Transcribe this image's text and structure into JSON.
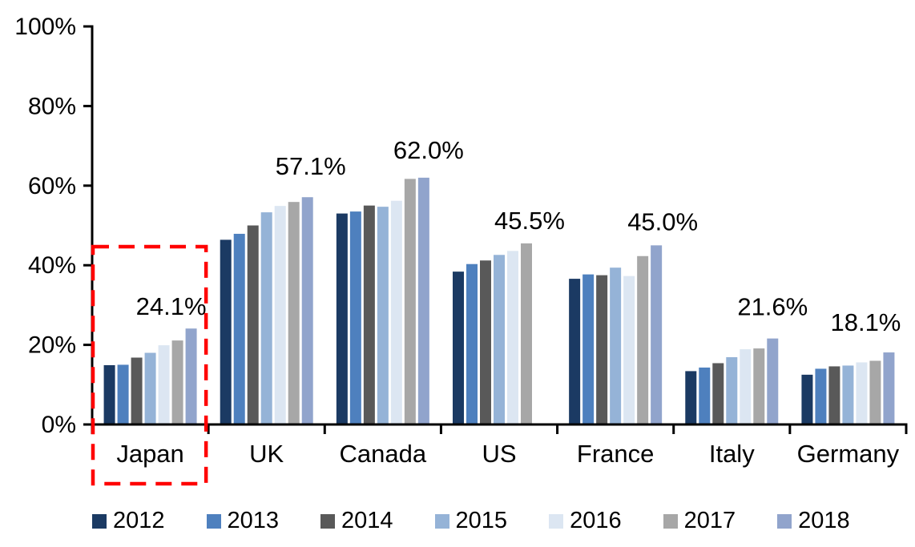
{
  "chart_data": {
    "type": "bar",
    "categories": [
      "Japan",
      "UK",
      "Canada",
      "US",
      "France",
      "Italy",
      "Germany"
    ],
    "series": [
      {
        "name": "2012",
        "color": "#1B3A63",
        "values": [
          14.9,
          46.4,
          53.0,
          38.4,
          36.6,
          13.4,
          12.5
        ]
      },
      {
        "name": "2013",
        "color": "#4E80BE",
        "values": [
          15.0,
          47.9,
          53.5,
          40.3,
          37.7,
          14.3,
          14.0
        ]
      },
      {
        "name": "2014",
        "color": "#595959",
        "values": [
          16.8,
          50.0,
          55.0,
          41.2,
          37.5,
          15.4,
          14.6
        ]
      },
      {
        "name": "2015",
        "color": "#95B3D7",
        "values": [
          18.0,
          53.3,
          54.7,
          42.6,
          39.4,
          16.9,
          14.8
        ]
      },
      {
        "name": "2016",
        "color": "#DCE6F2",
        "values": [
          19.9,
          54.9,
          56.2,
          43.6,
          37.3,
          18.9,
          15.6
        ]
      },
      {
        "name": "2017",
        "color": "#A7A7A7",
        "values": [
          21.1,
          55.9,
          61.7,
          45.5,
          42.3,
          19.1,
          16.0
        ]
      },
      {
        "name": "2018",
        "color": "#91A4CC",
        "values": [
          24.1,
          57.1,
          62.0,
          null,
          45.0,
          21.6,
          18.1
        ]
      }
    ],
    "annotations": [
      {
        "category": "Japan",
        "text": "24.1%"
      },
      {
        "category": "UK",
        "text": "57.1%"
      },
      {
        "category": "Canada",
        "text": "62.0%"
      },
      {
        "category": "US",
        "text": "45.5%"
      },
      {
        "category": "France",
        "text": "45.0%"
      },
      {
        "category": "Italy",
        "text": "21.6%"
      },
      {
        "category": "Germany",
        "text": "18.1%"
      }
    ],
    "y_ticks": [
      "0%",
      "20%",
      "40%",
      "60%",
      "80%",
      "100%"
    ],
    "ylim": [
      0,
      100
    ],
    "grid": "off",
    "legend_position": "bottom",
    "highlight": {
      "category": "Japan",
      "style": "dashed-box",
      "color": "#FF0000"
    },
    "axis_color": "#000000",
    "text_color": "#000000"
  }
}
